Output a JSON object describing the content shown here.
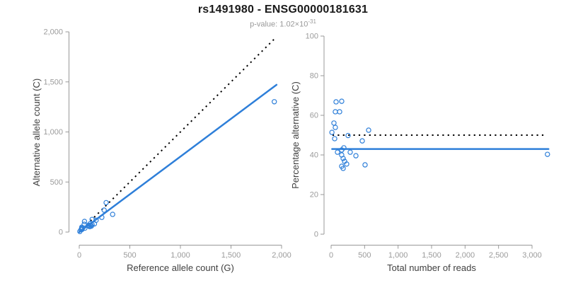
{
  "header": {
    "title": "rs1491980 - ENSG00000181631",
    "pvalue_label": "p-value: 1.02×10",
    "pvalue_exponent": "-31"
  },
  "colors": {
    "point_blue": "#2e7fd9",
    "fit_line_blue": "#2e7fd9",
    "reference_line_black": "#000000",
    "axis_gray": "#999999",
    "tick_label_gray": "#9b9b9b",
    "axis_title_gray": "#404040",
    "title_black": "#1a1a1a",
    "subtitle_gray": "#999999",
    "background": "#ffffff"
  },
  "chart_data": [
    {
      "id": "allele-counts",
      "type": "scatter",
      "title": "",
      "xlabel": "Reference allele count (G)",
      "ylabel": "Alternative allele count (C)",
      "xlim": [
        0,
        2000
      ],
      "ylim": [
        0,
        2000
      ],
      "xtick_values": [
        0,
        500,
        1000,
        1500,
        2000
      ],
      "xtick_labels": [
        "0",
        "500",
        "1,000",
        "1,500",
        "2,000"
      ],
      "ytick_values": [
        0,
        500,
        1000,
        1500,
        2000
      ],
      "ytick_labels": [
        "0",
        "500",
        "1,000",
        "1,500",
        "2,000"
      ],
      "grid": false,
      "legend": false,
      "points": [
        [
          25,
          49
        ],
        [
          52,
          106
        ],
        [
          24,
          39
        ],
        [
          49,
          78
        ],
        [
          18,
          24
        ],
        [
          29,
          34
        ],
        [
          266,
          294
        ],
        [
          6,
          6
        ],
        [
          27,
          26
        ],
        [
          246,
          219
        ],
        [
          107,
          83
        ],
        [
          91,
          67
        ],
        [
          56,
          39
        ],
        [
          167,
          118
        ],
        [
          95,
          63
        ],
        [
          223,
          147
        ],
        [
          111,
          69
        ],
        [
          127,
          74
        ],
        [
          150,
          82
        ],
        [
          104,
          54
        ],
        [
          120,
          60
        ],
        [
          330,
          177
        ],
        [
          127,
          126
        ],
        [
          1928,
          1302
        ]
      ],
      "lines": [
        {
          "name": "identity-50pct-dotted",
          "style": "dotted",
          "color": "#000000",
          "x1": 0,
          "y1": 0,
          "x2": 1945,
          "y2": 1945
        },
        {
          "name": "fit-43pct-solid",
          "style": "solid",
          "color": "#2e7fd9",
          "x1": 0,
          "y1": 0,
          "x2": 1950,
          "y2": 1471
        }
      ]
    },
    {
      "id": "percentage-vs-reads",
      "type": "scatter",
      "title": "",
      "xlabel": "Total number of reads",
      "ylabel": "Percentage alternative (C)",
      "xlim": [
        0,
        3250
      ],
      "ylim": [
        0,
        100
      ],
      "xtick_values": [
        0,
        500,
        1000,
        1500,
        2000,
        2500,
        3000
      ],
      "xtick_labels": [
        "0",
        "500",
        "1,000",
        "1,500",
        "2,000",
        "2,500",
        "3,000"
      ],
      "ytick_values": [
        0,
        20,
        40,
        60,
        80,
        100
      ],
      "ytick_labels": [
        "0",
        "20",
        "40",
        "60",
        "80",
        "100"
      ],
      "grid": false,
      "legend": false,
      "points": [
        [
          74,
          66.8
        ],
        [
          158,
          67.1
        ],
        [
          63,
          61.8
        ],
        [
          127,
          61.8
        ],
        [
          42,
          56.1
        ],
        [
          63,
          53.9
        ],
        [
          560,
          52.5
        ],
        [
          12,
          51.4
        ],
        [
          53,
          48.2
        ],
        [
          465,
          47.1
        ],
        [
          190,
          43.6
        ],
        [
          158,
          42.5
        ],
        [
          95,
          41.4
        ],
        [
          285,
          41.4
        ],
        [
          158,
          40.0
        ],
        [
          370,
          39.6
        ],
        [
          180,
          38.2
        ],
        [
          201,
          36.8
        ],
        [
          232,
          35.4
        ],
        [
          158,
          34.3
        ],
        [
          180,
          33.2
        ],
        [
          507,
          35.0
        ],
        [
          253,
          49.8
        ],
        [
          3230,
          40.3
        ]
      ],
      "lines": [
        {
          "name": "reference-50pct-dotted",
          "style": "dotted",
          "color": "#000000",
          "x1": 20,
          "y1": 50,
          "x2": 3180,
          "y2": 50
        },
        {
          "name": "fit-43pct-solid",
          "style": "solid",
          "color": "#2e7fd9",
          "x1": 15,
          "y1": 43,
          "x2": 3245,
          "y2": 43
        }
      ]
    }
  ]
}
